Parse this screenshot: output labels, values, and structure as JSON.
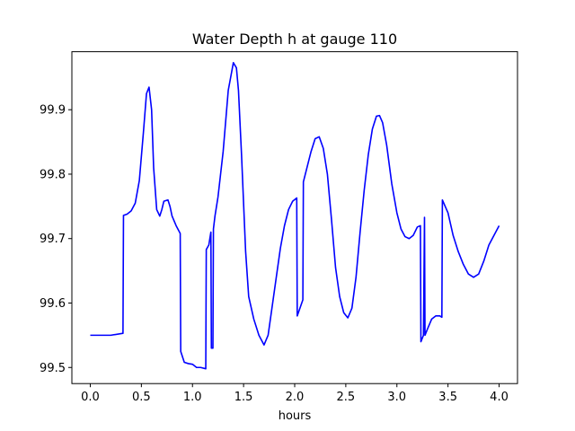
{
  "chart_data": {
    "type": "line",
    "title": "Water Depth h at gauge 110",
    "xlabel": "hours",
    "ylabel": "",
    "xlim": [
      -0.18,
      4.18
    ],
    "ylim": [
      99.475,
      99.99
    ],
    "xticks": [
      0.0,
      0.5,
      1.0,
      1.5,
      2.0,
      2.5,
      3.0,
      3.5,
      4.0
    ],
    "xtick_labels": [
      "0.0",
      "0.5",
      "1.0",
      "1.5",
      "2.0",
      "2.5",
      "3.0",
      "3.5",
      "4.0"
    ],
    "yticks": [
      99.5,
      99.6,
      99.7,
      99.8,
      99.9
    ],
    "ytick_labels": [
      "99.5",
      "99.6",
      "99.7",
      "99.8",
      "99.9"
    ],
    "grid": false,
    "legend": "none",
    "series": [
      {
        "color": "#0000ff",
        "x": [
          0.0,
          0.2,
          0.32,
          0.325,
          0.36,
          0.4,
          0.44,
          0.48,
          0.52,
          0.55,
          0.575,
          0.6,
          0.62,
          0.65,
          0.68,
          0.7,
          0.72,
          0.76,
          0.78,
          0.8,
          0.84,
          0.88,
          0.885,
          0.92,
          0.96,
          1.0,
          1.04,
          1.08,
          1.13,
          1.135,
          1.16,
          1.18,
          1.185,
          1.2,
          1.205,
          1.22,
          1.25,
          1.3,
          1.35,
          1.4,
          1.43,
          1.45,
          1.48,
          1.52,
          1.55,
          1.6,
          1.65,
          1.7,
          1.74,
          1.78,
          1.82,
          1.86,
          1.9,
          1.94,
          1.98,
          2.02,
          2.025,
          2.08,
          2.085,
          2.12,
          2.16,
          2.2,
          2.24,
          2.28,
          2.32,
          2.36,
          2.4,
          2.44,
          2.48,
          2.52,
          2.56,
          2.6,
          2.64,
          2.68,
          2.72,
          2.76,
          2.8,
          2.83,
          2.86,
          2.9,
          2.95,
          3.0,
          3.04,
          3.08,
          3.12,
          3.16,
          3.2,
          3.23,
          3.235,
          3.26,
          3.27,
          3.275,
          3.3,
          3.34,
          3.38,
          3.42,
          3.44,
          3.445,
          3.5,
          3.55,
          3.6,
          3.65,
          3.7,
          3.75,
          3.8,
          3.85,
          3.9,
          3.95,
          4.0
        ],
        "y": [
          99.55,
          99.55,
          99.553,
          99.736,
          99.738,
          99.743,
          99.755,
          99.79,
          99.865,
          99.925,
          99.935,
          99.9,
          99.81,
          99.745,
          99.735,
          99.745,
          99.758,
          99.76,
          99.75,
          99.735,
          99.72,
          99.708,
          99.525,
          99.508,
          99.506,
          99.505,
          99.5,
          99.5,
          99.498,
          99.683,
          99.69,
          99.71,
          99.53,
          99.53,
          99.715,
          99.735,
          99.765,
          99.835,
          99.93,
          99.973,
          99.965,
          99.93,
          99.83,
          99.68,
          99.61,
          99.575,
          99.55,
          99.535,
          99.55,
          99.595,
          99.64,
          99.685,
          99.72,
          99.745,
          99.758,
          99.763,
          99.58,
          99.605,
          99.788,
          99.81,
          99.835,
          99.855,
          99.858,
          99.84,
          99.8,
          99.73,
          99.655,
          99.61,
          99.585,
          99.577,
          99.592,
          99.64,
          99.71,
          99.775,
          99.83,
          99.87,
          99.89,
          99.891,
          99.88,
          99.845,
          99.785,
          99.74,
          99.715,
          99.703,
          99.7,
          99.705,
          99.718,
          99.72,
          99.54,
          99.55,
          99.733,
          99.55,
          99.56,
          99.575,
          99.58,
          99.58,
          99.578,
          99.76,
          99.74,
          99.705,
          99.68,
          99.66,
          99.645,
          99.64,
          99.645,
          99.665,
          99.69,
          99.705,
          99.72
        ]
      }
    ]
  }
}
